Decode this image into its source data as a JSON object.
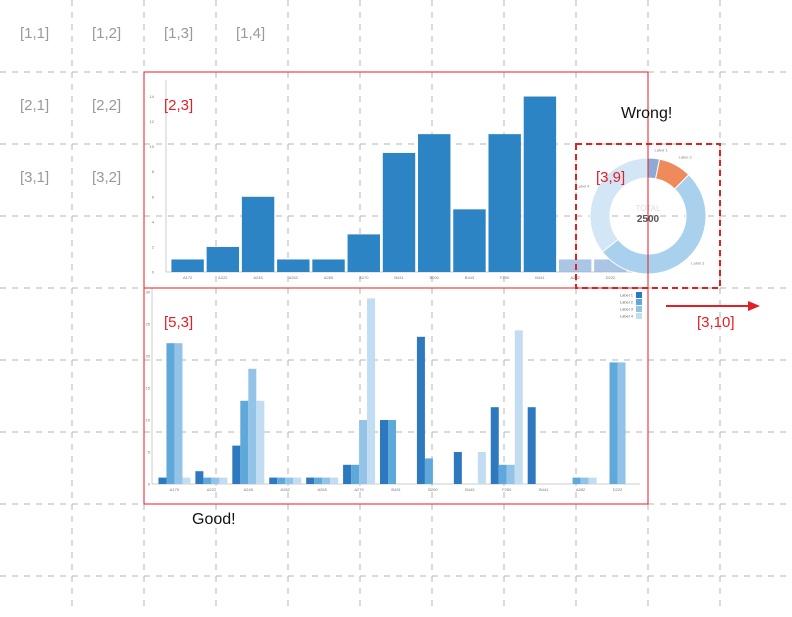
{
  "grid_labels": [
    "[1,1]",
    "[1,2]",
    "[1,3]",
    "[1,4]",
    "[2,1]",
    "[2,2]",
    "[3,1]",
    "[3,2]"
  ],
  "panel_labels": {
    "top_chart": "[2,3]",
    "bottom_chart": "[5,3]",
    "donut": "[3,9]",
    "arrow": "[3,10]"
  },
  "notes": {
    "wrong": "Wrong!",
    "good": "Good!"
  },
  "colors": {
    "accent": "#e31e24",
    "grid": "#b4b4b4",
    "cell_label": "#9a9a9a"
  },
  "chart_data": [
    {
      "type": "bar",
      "categories": [
        "A172",
        "A222",
        "A245",
        "A262",
        "A265",
        "A270",
        "B431",
        "B200",
        "B443",
        "F250",
        "B441",
        "A282",
        "D222"
      ],
      "values": [
        1,
        2,
        6,
        1,
        1,
        3,
        9.5,
        11,
        5,
        11,
        14,
        1,
        1
      ],
      "ylim": [
        0,
        15
      ]
    },
    {
      "type": "bar",
      "categories": [
        "A170",
        "A222",
        "A245",
        "A262",
        "A265",
        "A270",
        "B431",
        "B200",
        "B443",
        "F250",
        "B441",
        "A282",
        "D222"
      ],
      "series": [
        {
          "name": "Label 1",
          "values": [
            1,
            2,
            6,
            1,
            1,
            3,
            10,
            23,
            5,
            12,
            12,
            0,
            0
          ]
        },
        {
          "name": "Label 2",
          "values": [
            22,
            1,
            13,
            1,
            1,
            3,
            10,
            4,
            0,
            3,
            0,
            1,
            19
          ]
        },
        {
          "name": "Label 3",
          "values": [
            22,
            1,
            18,
            1,
            1,
            10,
            0,
            0,
            0,
            3,
            0,
            1,
            19
          ]
        },
        {
          "name": "Label 4",
          "values": [
            1,
            1,
            13,
            1,
            1,
            29,
            0,
            0,
            5,
            24,
            0,
            1,
            0
          ]
        }
      ],
      "ylim": [
        0,
        30
      ]
    },
    {
      "type": "pie",
      "center_label": "TOTAL",
      "center_value": "2500",
      "slices": [
        {
          "label": "Label 1",
          "value": 80
        },
        {
          "label": "Label 2",
          "value": 230
        },
        {
          "label": "Label 3",
          "value": 1300
        },
        {
          "label": "Label 4",
          "value": 890
        }
      ]
    }
  ]
}
